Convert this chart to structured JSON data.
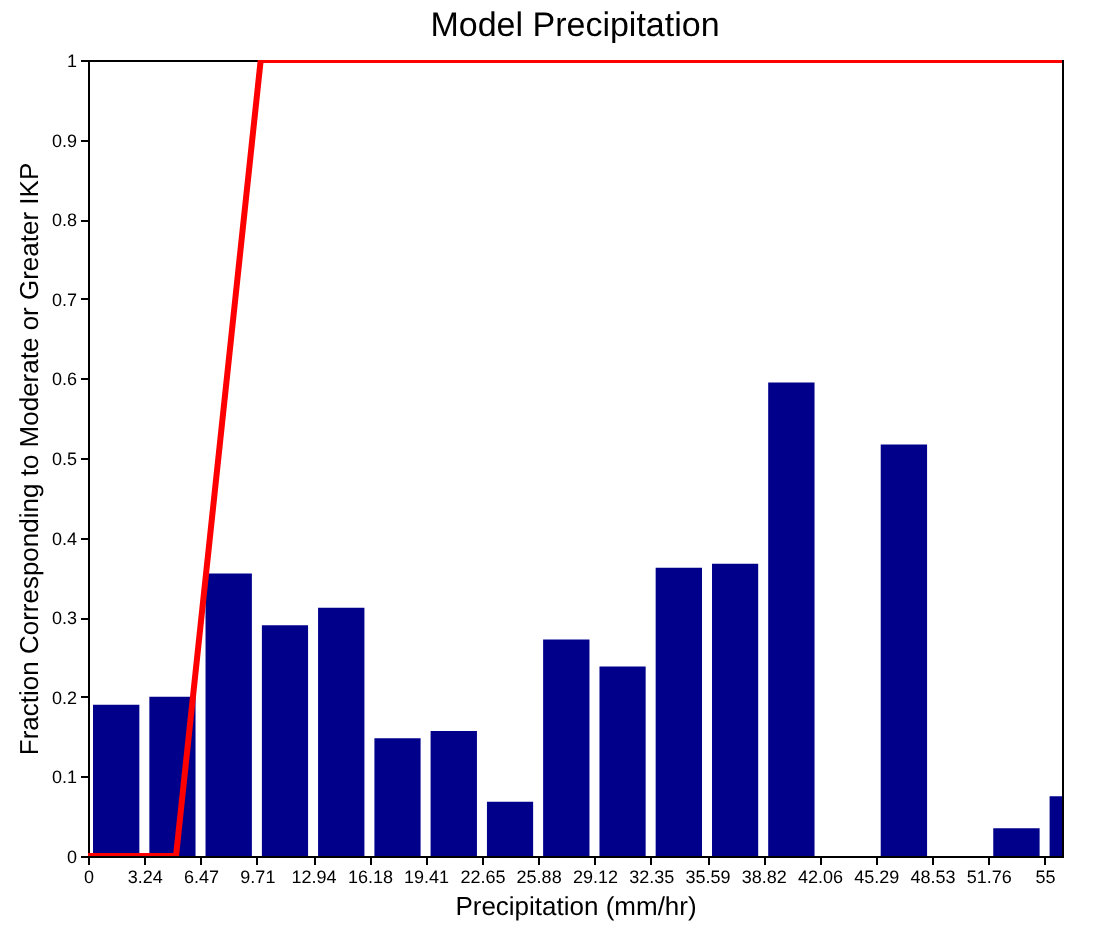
{
  "chart_data": {
    "type": "histogram",
    "title": "Model Precipitation",
    "xlabel": "Precipitation (mm/hr)",
    "ylabel": "Fraction Corresponding to Moderate or Greater IKP",
    "bins": [
      0,
      3.24,
      6.47,
      9.71,
      12.94,
      16.18,
      19.41,
      22.65,
      25.88,
      29.12,
      32.35,
      35.59,
      38.82,
      42.06,
      45.29,
      48.53,
      51.76,
      55,
      58.24
    ],
    "values": [
      0.19,
      0.2,
      0.355,
      0.29,
      0.312,
      0.148,
      0.157,
      0.068,
      0.272,
      0.238,
      0.362,
      0.367,
      0.595,
      0,
      0.517,
      0,
      0.035,
      0.075
    ],
    "color": "#00008b",
    "series": [
      {
        "type": "line",
        "color": "#ff0000",
        "x": [
          0,
          5.06,
          9.93,
          56
        ],
        "values": [
          0,
          0,
          1,
          1
        ]
      }
    ],
    "xlim": [
      0,
      56
    ],
    "xticks": [
      0,
      3.24,
      6.47,
      9.71,
      12.94,
      16.18,
      19.41,
      22.65,
      25.88,
      29.12,
      32.35,
      35.59,
      38.82,
      42.06,
      45.29,
      48.53,
      51.76,
      55
    ],
    "ylim": [
      0,
      1
    ],
    "yticks": [
      0,
      0.1,
      0.2,
      0.3,
      0.4,
      0.5,
      0.6,
      0.7,
      0.8,
      0.9,
      1
    ],
    "grid": false
  }
}
